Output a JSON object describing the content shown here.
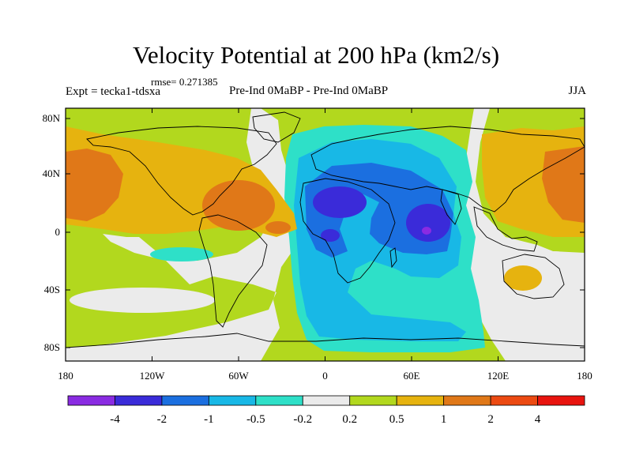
{
  "title": "Velocity Potential at 200 hPa (km2/s)",
  "rmse_label": "rmse= 0.271385",
  "expt_label": "Expt = tecka1-tdsxa",
  "diff_label": "Pre-Ind 0MaBP - Pre-Ind    0MaBP",
  "season": "JJA",
  "lat_labels": [
    "80N",
    "40N",
    "0",
    "40S",
    "80S"
  ],
  "lon_labels": [
    "180",
    "120W",
    "60W",
    "0",
    "60E",
    "120E",
    "180"
  ],
  "colorbar": {
    "colors": [
      "#8a2be2",
      "#3a2bd9",
      "#1b6fe0",
      "#18b8e6",
      "#2ee0c8",
      "#ebebeb",
      "#b2d81e",
      "#e6b30f",
      "#e07818",
      "#ec4a12",
      "#e8140f"
    ],
    "labels": [
      "-4",
      "-2",
      "-1",
      "-0.5",
      "-0.2",
      "0.2",
      "0.5",
      "1",
      "2",
      "4"
    ]
  }
}
